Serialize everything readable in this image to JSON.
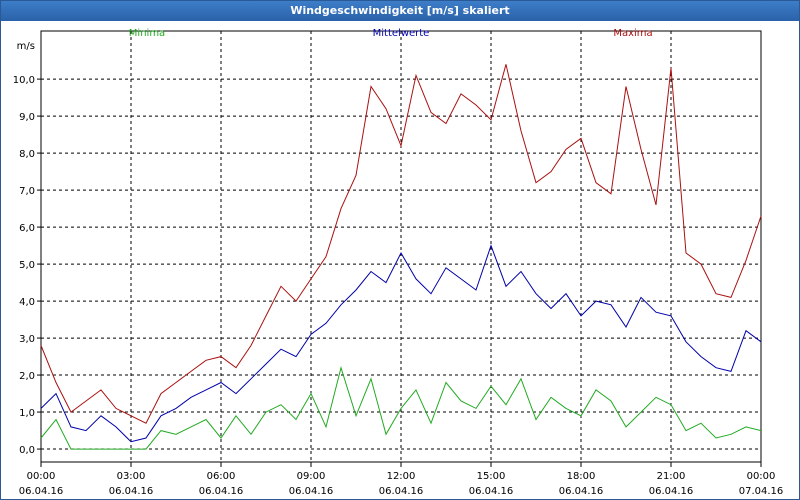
{
  "window": {
    "title": "Windgeschwindigkeit [m/s] skaliert"
  },
  "colors": {
    "minima": "#22aa22",
    "mittelwerte": "#0000aa",
    "maxima": "#aa1111",
    "grid": "#000000",
    "title_bg": "#2a62a8"
  },
  "chart_data": {
    "type": "line",
    "title": "Windgeschwindigkeit [m/s] skaliert",
    "ylabel": "m/s",
    "ylim": [
      -0.35,
      11.3
    ],
    "yticks": [
      0,
      1,
      2,
      3,
      4,
      5,
      6,
      7,
      8,
      9,
      10
    ],
    "ytick_labels": [
      "0,0",
      "1,0",
      "2,0",
      "3,0",
      "4,0",
      "5,0",
      "6,0",
      "7,0",
      "8,0",
      "9,0",
      "10,0"
    ],
    "xlim": [
      0,
      24
    ],
    "xticks": [
      0,
      3,
      6,
      9,
      12,
      15,
      18,
      21,
      24
    ],
    "xtick_labels": [
      {
        "time": "00:00",
        "date": "06.04.16"
      },
      {
        "time": "03:00",
        "date": "06.04.16"
      },
      {
        "time": "06:00",
        "date": "06.04.16"
      },
      {
        "time": "09:00",
        "date": "06.04.16"
      },
      {
        "time": "12:00",
        "date": "06.04.16"
      },
      {
        "time": "15:00",
        "date": "06.04.16"
      },
      {
        "time": "18:00",
        "date": "06.04.16"
      },
      {
        "time": "21:00",
        "date": "06.04.16"
      },
      {
        "time": "00:00",
        "date": "07.04.16"
      }
    ],
    "grid": true,
    "legend": [
      "Minima",
      "Mittelwerte",
      "Maxima"
    ],
    "series": [
      {
        "name": "Minima",
        "x": [
          0,
          0.5,
          1,
          1.5,
          2,
          2.5,
          3,
          3.5,
          4,
          4.5,
          5,
          5.5,
          6,
          6.5,
          7,
          7.5,
          8,
          8.5,
          9,
          9.5,
          10,
          10.5,
          11,
          11.5,
          12,
          12.5,
          13,
          13.5,
          14,
          14.5,
          15,
          15.5,
          16,
          16.5,
          17,
          17.5,
          18,
          18.5,
          19,
          19.5,
          20,
          20.5,
          21,
          21.5,
          22,
          22.5,
          23,
          23.5,
          24
        ],
        "values": [
          0.3,
          0.8,
          0.0,
          0.0,
          0.0,
          0.0,
          0.0,
          0.0,
          0.5,
          0.4,
          0.6,
          0.8,
          0.3,
          0.9,
          0.4,
          1.0,
          1.2,
          0.8,
          1.5,
          0.6,
          2.2,
          0.9,
          1.9,
          0.4,
          1.1,
          1.6,
          0.7,
          1.8,
          1.3,
          1.1,
          1.7,
          1.2,
          1.9,
          0.8,
          1.4,
          1.1,
          0.9,
          1.6,
          1.3,
          0.6,
          1.0,
          1.4,
          1.2,
          0.5,
          0.7,
          0.3,
          0.4,
          0.6,
          0.5
        ]
      },
      {
        "name": "Mittelwerte",
        "x": [
          0,
          0.5,
          1,
          1.5,
          2,
          2.5,
          3,
          3.5,
          4,
          4.5,
          5,
          5.5,
          6,
          6.5,
          7,
          7.5,
          8,
          8.5,
          9,
          9.5,
          10,
          10.5,
          11,
          11.5,
          12,
          12.5,
          13,
          13.5,
          14,
          14.5,
          15,
          15.5,
          16,
          16.5,
          17,
          17.5,
          18,
          18.5,
          19,
          19.5,
          20,
          20.5,
          21,
          21.5,
          22,
          22.5,
          23,
          23.5,
          24
        ],
        "values": [
          1.1,
          1.5,
          0.6,
          0.5,
          0.9,
          0.6,
          0.2,
          0.3,
          0.9,
          1.1,
          1.4,
          1.6,
          1.8,
          1.5,
          1.9,
          2.3,
          2.7,
          2.5,
          3.1,
          3.4,
          3.9,
          4.3,
          4.8,
          4.5,
          5.3,
          4.6,
          4.2,
          4.9,
          4.6,
          4.3,
          5.5,
          4.4,
          4.8,
          4.2,
          3.8,
          4.2,
          3.6,
          4.0,
          3.9,
          3.3,
          4.1,
          3.7,
          3.6,
          2.9,
          2.5,
          2.2,
          2.1,
          3.2,
          2.9
        ]
      },
      {
        "name": "Maxima",
        "x": [
          0,
          0.5,
          1,
          1.5,
          2,
          2.5,
          3,
          3.5,
          4,
          4.5,
          5,
          5.5,
          6,
          6.5,
          7,
          7.5,
          8,
          8.5,
          9,
          9.5,
          10,
          10.5,
          11,
          11.5,
          12,
          12.5,
          13,
          13.5,
          14,
          14.5,
          15,
          15.5,
          16,
          16.5,
          17,
          17.5,
          18,
          18.5,
          19,
          19.5,
          20,
          20.5,
          21,
          21.5,
          22,
          22.5,
          23,
          23.5,
          24
        ],
        "values": [
          2.8,
          1.8,
          1.0,
          1.3,
          1.6,
          1.1,
          0.9,
          0.7,
          1.5,
          1.8,
          2.1,
          2.4,
          2.5,
          2.2,
          2.8,
          3.6,
          4.4,
          4.0,
          4.6,
          5.2,
          6.5,
          7.4,
          9.8,
          9.2,
          8.2,
          10.1,
          9.1,
          8.8,
          9.6,
          9.3,
          8.9,
          10.4,
          8.6,
          7.2,
          7.5,
          8.1,
          8.4,
          7.2,
          6.9,
          9.8,
          8.1,
          6.6,
          10.3,
          5.3,
          5.0,
          4.2,
          4.1,
          5.1,
          6.3
        ]
      }
    ]
  }
}
